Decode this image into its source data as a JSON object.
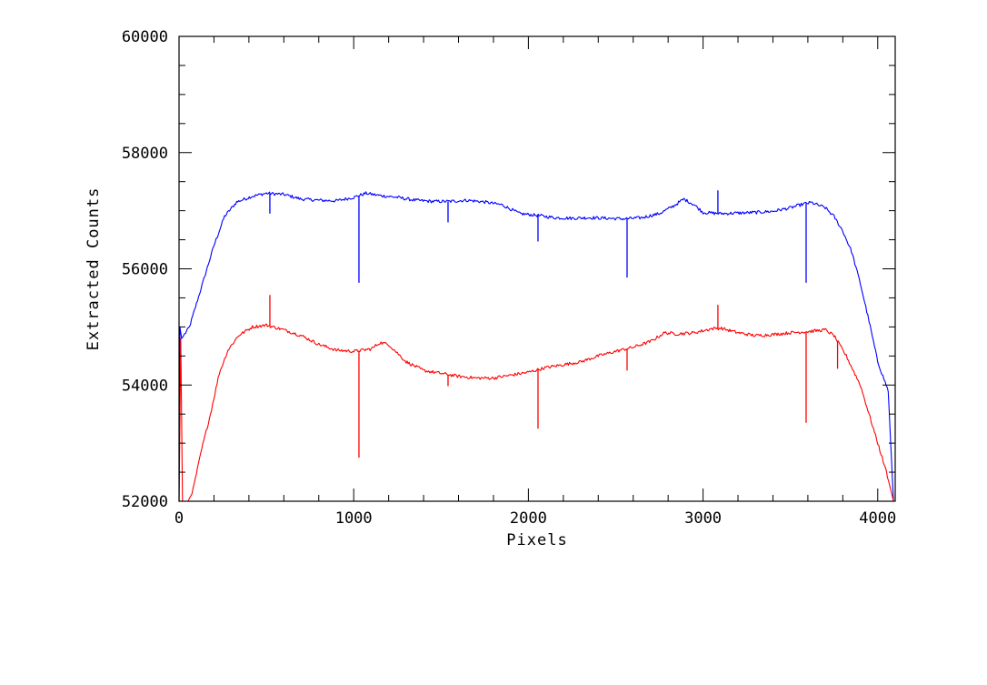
{
  "chart_data": {
    "type": "line",
    "title": "",
    "xlabel": "Pixels",
    "ylabel": "Extracted Counts",
    "xlim": [
      0,
      4100
    ],
    "ylim": [
      52000,
      60000
    ],
    "x_ticks": [
      0,
      1000,
      2000,
      3000,
      4000
    ],
    "x_tick_labels": [
      "0",
      "1000",
      "2000",
      "3000",
      "4000"
    ],
    "y_ticks": [
      52000,
      54000,
      56000,
      58000,
      60000
    ],
    "y_tick_labels": [
      "52000",
      "54000",
      "56000",
      "58000",
      "60000"
    ],
    "grid": false,
    "series": [
      {
        "color": "#0000ff",
        "points": [
          [
            0,
            52000
          ],
          [
            5,
            55000
          ],
          [
            15,
            54800
          ],
          [
            60,
            55000
          ],
          [
            100,
            55400
          ],
          [
            150,
            55900
          ],
          [
            200,
            56400
          ],
          [
            260,
            56900
          ],
          [
            330,
            57150
          ],
          [
            420,
            57250
          ],
          [
            500,
            57300
          ],
          [
            600,
            57280
          ],
          [
            700,
            57200
          ],
          [
            800,
            57180
          ],
          [
            900,
            57170
          ],
          [
            1000,
            57230
          ],
          [
            1070,
            57300
          ],
          [
            1150,
            57260
          ],
          [
            1250,
            57230
          ],
          [
            1350,
            57180
          ],
          [
            1450,
            57160
          ],
          [
            1550,
            57160
          ],
          [
            1650,
            57180
          ],
          [
            1750,
            57150
          ],
          [
            1850,
            57100
          ],
          [
            1950,
            56950
          ],
          [
            2050,
            56920
          ],
          [
            2150,
            56880
          ],
          [
            2250,
            56870
          ],
          [
            2350,
            56880
          ],
          [
            2450,
            56870
          ],
          [
            2550,
            56860
          ],
          [
            2650,
            56880
          ],
          [
            2750,
            56950
          ],
          [
            2830,
            57080
          ],
          [
            2890,
            57200
          ],
          [
            2950,
            57100
          ],
          [
            3000,
            56970
          ],
          [
            3100,
            56950
          ],
          [
            3200,
            56960
          ],
          [
            3300,
            56970
          ],
          [
            3400,
            56990
          ],
          [
            3500,
            57050
          ],
          [
            3580,
            57120
          ],
          [
            3620,
            57140
          ],
          [
            3700,
            57050
          ],
          [
            3750,
            56900
          ],
          [
            3800,
            56650
          ],
          [
            3850,
            56300
          ],
          [
            3900,
            55750
          ],
          [
            3950,
            55100
          ],
          [
            4000,
            54400
          ],
          [
            4060,
            53900
          ],
          [
            4090,
            52000
          ]
        ],
        "spikes": [
          [
            520,
            56950
          ],
          [
            1030,
            55760
          ],
          [
            1540,
            56800
          ],
          [
            2055,
            56470
          ],
          [
            2565,
            55850
          ],
          [
            3085,
            57350
          ],
          [
            3590,
            55760
          ]
        ]
      },
      {
        "color": "#ff0000",
        "points": [
          [
            0,
            52000
          ],
          [
            10,
            54800
          ],
          [
            20,
            51900
          ],
          [
            40,
            51900
          ],
          [
            80,
            52200
          ],
          [
            130,
            52900
          ],
          [
            180,
            53500
          ],
          [
            230,
            54200
          ],
          [
            280,
            54600
          ],
          [
            340,
            54850
          ],
          [
            420,
            55000
          ],
          [
            500,
            55030
          ],
          [
            600,
            54950
          ],
          [
            700,
            54850
          ],
          [
            800,
            54700
          ],
          [
            900,
            54600
          ],
          [
            1000,
            54580
          ],
          [
            1100,
            54620
          ],
          [
            1150,
            54730
          ],
          [
            1200,
            54700
          ],
          [
            1250,
            54550
          ],
          [
            1300,
            54400
          ],
          [
            1400,
            54250
          ],
          [
            1500,
            54200
          ],
          [
            1600,
            54150
          ],
          [
            1700,
            54120
          ],
          [
            1800,
            54120
          ],
          [
            1900,
            54170
          ],
          [
            2000,
            54220
          ],
          [
            2100,
            54300
          ],
          [
            2200,
            54350
          ],
          [
            2300,
            54400
          ],
          [
            2400,
            54500
          ],
          [
            2500,
            54580
          ],
          [
            2600,
            54650
          ],
          [
            2700,
            54750
          ],
          [
            2780,
            54900
          ],
          [
            2850,
            54880
          ],
          [
            2950,
            54900
          ],
          [
            3050,
            54970
          ],
          [
            3100,
            54980
          ],
          [
            3200,
            54900
          ],
          [
            3300,
            54850
          ],
          [
            3400,
            54870
          ],
          [
            3500,
            54900
          ],
          [
            3600,
            54920
          ],
          [
            3700,
            54950
          ],
          [
            3750,
            54850
          ],
          [
            3820,
            54500
          ],
          [
            3900,
            54000
          ],
          [
            3950,
            53500
          ],
          [
            4000,
            53000
          ],
          [
            4050,
            52500
          ],
          [
            4090,
            52000
          ]
        ],
        "spikes": [
          [
            520,
            55550
          ],
          [
            1030,
            52750
          ],
          [
            1540,
            53980
          ],
          [
            2055,
            53250
          ],
          [
            2565,
            54250
          ],
          [
            3085,
            55380
          ],
          [
            3590,
            53350
          ],
          [
            3770,
            54280
          ]
        ]
      }
    ]
  }
}
